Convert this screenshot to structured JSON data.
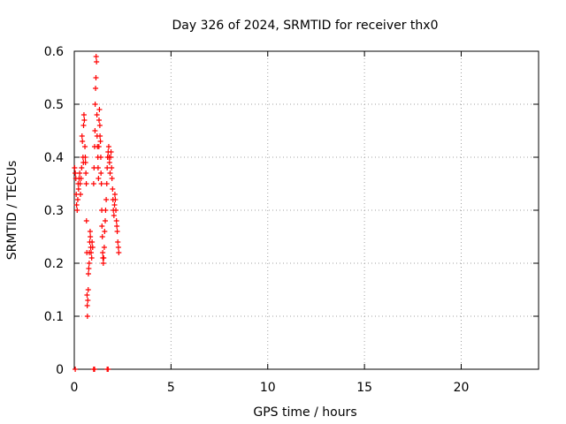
{
  "chart_data": {
    "type": "scatter",
    "title": "Day 326 of 2024, SRMTID for receiver thx0",
    "xlabel": "GPS time / hours",
    "ylabel": "SRMTID / TECUs",
    "xlim": [
      0,
      24
    ],
    "ylim": [
      0,
      0.6
    ],
    "xticks": [
      0,
      5,
      10,
      15,
      20
    ],
    "yticks": [
      0,
      0.1,
      0.2,
      0.3,
      0.4,
      0.5,
      0.6
    ],
    "xtick_labels": [
      "0",
      "5",
      "10",
      "15",
      "20"
    ],
    "ytick_labels": [
      "0",
      "0.1",
      "0.2",
      "0.3",
      "0.4",
      "0.5",
      "0.6"
    ],
    "grid": true,
    "marker_color": "#ff0000",
    "series": [
      {
        "name": "SRMTID",
        "points": [
          [
            0.02,
            0.38
          ],
          [
            0.05,
            0.37
          ],
          [
            0.08,
            0.36
          ],
          [
            0.1,
            0.33
          ],
          [
            0.12,
            0.31
          ],
          [
            0.15,
            0.3
          ],
          [
            0.18,
            0.32
          ],
          [
            0.2,
            0.35
          ],
          [
            0.22,
            0.34
          ],
          [
            0.25,
            0.36
          ],
          [
            0.28,
            0.37
          ],
          [
            0.3,
            0.35
          ],
          [
            0.32,
            0.33
          ],
          [
            0.35,
            0.36
          ],
          [
            0.38,
            0.38
          ],
          [
            0.4,
            0.44
          ],
          [
            0.42,
            0.43
          ],
          [
            0.45,
            0.4
          ],
          [
            0.47,
            0.39
          ],
          [
            0.48,
            0.46
          ],
          [
            0.5,
            0.48
          ],
          [
            0.52,
            0.47
          ],
          [
            0.55,
            0.42
          ],
          [
            0.57,
            0.4
          ],
          [
            0.58,
            0.39
          ],
          [
            0.6,
            0.37
          ],
          [
            0.62,
            0.35
          ],
          [
            0.63,
            0.28
          ],
          [
            0.65,
            0.22
          ],
          [
            0.66,
            0.14
          ],
          [
            0.67,
            0.12
          ],
          [
            0.68,
            0.1
          ],
          [
            0.7,
            0.13
          ],
          [
            0.72,
            0.15
          ],
          [
            0.73,
            0.18
          ],
          [
            0.75,
            0.19
          ],
          [
            0.77,
            0.2
          ],
          [
            0.78,
            0.22
          ],
          [
            0.8,
            0.24
          ],
          [
            0.82,
            0.26
          ],
          [
            0.83,
            0.25
          ],
          [
            0.85,
            0.23
          ],
          [
            0.87,
            0.22
          ],
          [
            0.9,
            0.21
          ],
          [
            0.92,
            0.24
          ],
          [
            0.95,
            0.23
          ],
          [
            1.0,
            0.35
          ],
          [
            1.02,
            0.38
          ],
          [
            1.05,
            0.42
          ],
          [
            1.07,
            0.45
          ],
          [
            1.08,
            0.5
          ],
          [
            1.1,
            0.53
          ],
          [
            1.12,
            0.55
          ],
          [
            1.13,
            0.59
          ],
          [
            1.15,
            0.58
          ],
          [
            1.17,
            0.48
          ],
          [
            1.18,
            0.44
          ],
          [
            1.2,
            0.42
          ],
          [
            1.22,
            0.4
          ],
          [
            1.23,
            0.38
          ],
          [
            1.25,
            0.36
          ],
          [
            1.27,
            0.42
          ],
          [
            1.28,
            0.47
          ],
          [
            1.3,
            0.49
          ],
          [
            1.32,
            0.46
          ],
          [
            1.33,
            0.44
          ],
          [
            1.35,
            0.43
          ],
          [
            1.37,
            0.4
          ],
          [
            1.38,
            0.37
          ],
          [
            1.4,
            0.35
          ],
          [
            1.42,
            0.3
          ],
          [
            1.43,
            0.27
          ],
          [
            1.45,
            0.25
          ],
          [
            1.47,
            0.22
          ],
          [
            1.48,
            0.21
          ],
          [
            1.5,
            0.2
          ],
          [
            1.52,
            0.21
          ],
          [
            1.55,
            0.23
          ],
          [
            1.57,
            0.26
          ],
          [
            1.6,
            0.28
          ],
          [
            1.62,
            0.3
          ],
          [
            1.65,
            0.32
          ],
          [
            1.68,
            0.35
          ],
          [
            1.7,
            0.38
          ],
          [
            1.72,
            0.4
          ],
          [
            1.75,
            0.41
          ],
          [
            1.78,
            0.42
          ],
          [
            1.8,
            0.4
          ],
          [
            1.82,
            0.39
          ],
          [
            1.85,
            0.37
          ],
          [
            1.88,
            0.4
          ],
          [
            1.9,
            0.41
          ],
          [
            1.93,
            0.38
          ],
          [
            1.95,
            0.36
          ],
          [
            1.98,
            0.34
          ],
          [
            2.0,
            0.32
          ],
          [
            2.02,
            0.3
          ],
          [
            2.05,
            0.29
          ],
          [
            2.08,
            0.31
          ],
          [
            2.1,
            0.33
          ],
          [
            2.12,
            0.32
          ],
          [
            2.15,
            0.3
          ],
          [
            2.18,
            0.28
          ],
          [
            2.2,
            0.27
          ],
          [
            2.22,
            0.26
          ],
          [
            2.25,
            0.24
          ],
          [
            2.28,
            0.23
          ],
          [
            2.3,
            0.22
          ],
          [
            0.05,
            0.0
          ],
          [
            1.0,
            0.0
          ],
          [
            1.05,
            0.0
          ],
          [
            1.7,
            0.0
          ],
          [
            1.75,
            0.0
          ]
        ]
      }
    ]
  }
}
